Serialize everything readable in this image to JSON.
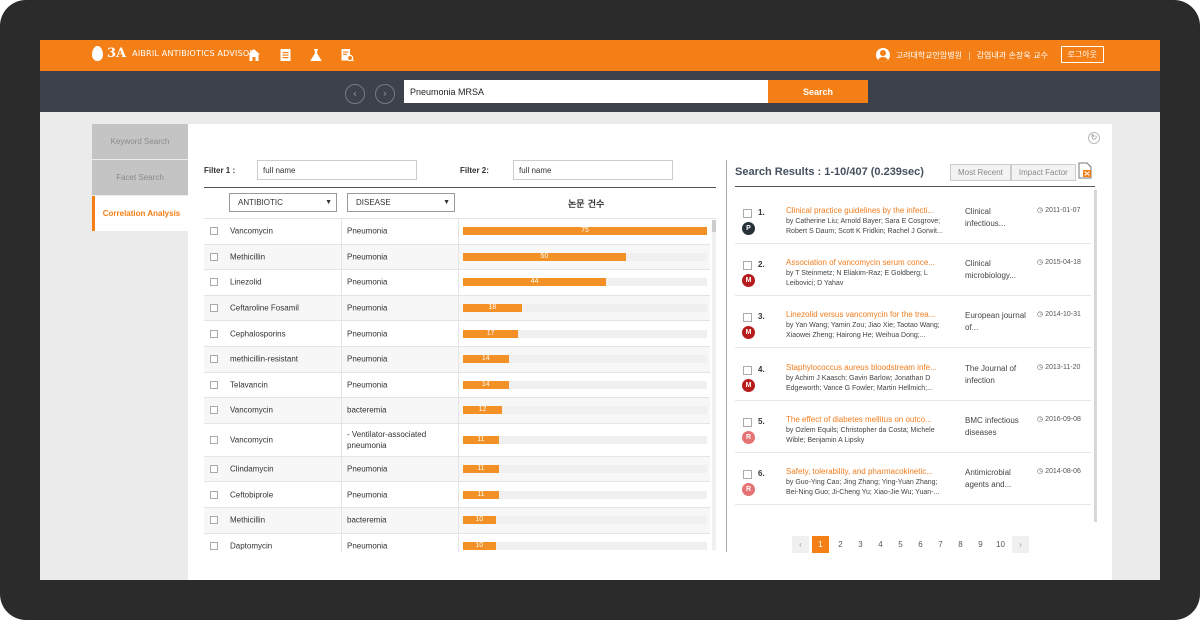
{
  "header": {
    "logo_mark": "3A",
    "logo_text": "AIBRIL ANTIBIOTICS ADVISOR",
    "nav_icons": [
      "home-icon",
      "document-icon",
      "flask-icon",
      "report-search-icon"
    ],
    "hospital": "고려대학교안암병원",
    "separator": "|",
    "user": "감염내과 손장욱 교수",
    "logout_label": "로그아웃",
    "accent_color": "#f57f17"
  },
  "search": {
    "query": "Pneumonia MRSA",
    "button_label": "Search",
    "back_glyph": "‹",
    "forward_glyph": "›"
  },
  "sidebar": {
    "tabs": [
      {
        "label": "Keyword Search",
        "active": false
      },
      {
        "label": "Facet Search",
        "active": false
      },
      {
        "label": "Correlation Analysis",
        "active": true
      }
    ]
  },
  "correlation": {
    "filter1_label": "Filter 1 :",
    "filter1_value": "full name",
    "filter2_label": "Filter 2:",
    "filter2_value": "full name",
    "col_antibiotic": "ANTIBIOTIC",
    "col_disease": "DISEASE",
    "col_count": "논문 건수",
    "max_count": 75,
    "rows": [
      {
        "antibiotic": "Vancomycin",
        "disease": "Pneumonia",
        "count": 75
      },
      {
        "antibiotic": "Methicillin",
        "disease": "Pneumonia",
        "count": 50
      },
      {
        "antibiotic": "Linezolid",
        "disease": "Pneumonia",
        "count": 44
      },
      {
        "antibiotic": "Ceftaroline Fosamil",
        "disease": "Pneumonia",
        "count": 18
      },
      {
        "antibiotic": "Cephalosporins",
        "disease": "Pneumonia",
        "count": 17
      },
      {
        "antibiotic": "methicillin-resistant",
        "disease": "Pneumonia",
        "count": 14
      },
      {
        "antibiotic": "Telavancin",
        "disease": "Pneumonia",
        "count": 14
      },
      {
        "antibiotic": "Vancomycin",
        "disease": "bacteremia",
        "count": 12
      },
      {
        "antibiotic": "Vancomycin",
        "disease": "- Ventilator-associated pneumonia",
        "count": 11
      },
      {
        "antibiotic": "Clindamycin",
        "disease": "Pneumonia",
        "count": 11
      },
      {
        "antibiotic": "Ceftobiprole",
        "disease": "Pneumonia",
        "count": 11
      },
      {
        "antibiotic": "Methicillin",
        "disease": "bacteremia",
        "count": 10
      },
      {
        "antibiotic": "Daptomycin",
        "disease": "Pneumonia",
        "count": 10
      }
    ]
  },
  "results": {
    "title": "Search Results : 1-10/407 (0.239sec)",
    "sort_recent": "Most Recent",
    "sort_impact": "Impact Factor",
    "items": [
      {
        "num": "1.",
        "badge": "P",
        "badge_color": "#263238",
        "title": "Clinical practice guidelines by the infecti...",
        "authors": "by Catherine Liu; Arnold Bayer; Sara E Cosgrove; Robert S Daum; Scott K Fridkin; Rachel J Gorwit...",
        "journal": "Clinical infectious...",
        "date": "2011-01-07"
      },
      {
        "num": "2.",
        "badge": "M",
        "badge_color": "#b71c1c",
        "title": "Association of vancomycin serum conce...",
        "authors": "by T Steinmetz; N Eliakim-Raz; E Goldberg; L Leibovici; D Yahav",
        "journal": "Clinical microbiology...",
        "date": "2015-04-18"
      },
      {
        "num": "3.",
        "badge": "M",
        "badge_color": "#b71c1c",
        "title": "Linezolid versus vancomycin for the trea...",
        "authors": "by Yan Wang; Yamin Zou; Jiao Xie; Taotao Wang; Xiaowei Zheng; Hairong He; Weihua Dong;...",
        "journal": "European journal of...",
        "date": "2014-10-31"
      },
      {
        "num": "4.",
        "badge": "M",
        "badge_color": "#b71c1c",
        "title": "Staphylococcus aureus bloodstream infe...",
        "authors": "by Achim J Kaasch; Gavin Barlow; Jonathan D Edgeworth; Vance G Fowler; Martin Hellmich;...",
        "journal": "The Journal of infection",
        "date": "2013-11-20"
      },
      {
        "num": "5.",
        "badge": "R",
        "badge_color": "#e57373",
        "title": "The effect of diabetes mellitus on outco...",
        "authors": "by Ozlem Equils; Christopher da Costa; Michele Wible; Benjamin A Lipsky",
        "journal": "BMC infectious diseases",
        "date": "2016-09-08"
      },
      {
        "num": "6.",
        "badge": "R",
        "badge_color": "#e57373",
        "title": "Safety, tolerability, and pharmacokinetic...",
        "authors": "by Guo-Ying Cao; Jing Zhang; Ying-Yuan Zhang; Bei-Ning Guo; Ji-Cheng Yu; Xiao-Jie Wu; Yuan-...",
        "journal": "Antimicrobial agents and...",
        "date": "2014-08-06"
      }
    ]
  },
  "pagination": {
    "prev": "‹",
    "next": "›",
    "pages": [
      "1",
      "2",
      "3",
      "4",
      "5",
      "6",
      "7",
      "8",
      "9",
      "10"
    ],
    "current": "1"
  }
}
